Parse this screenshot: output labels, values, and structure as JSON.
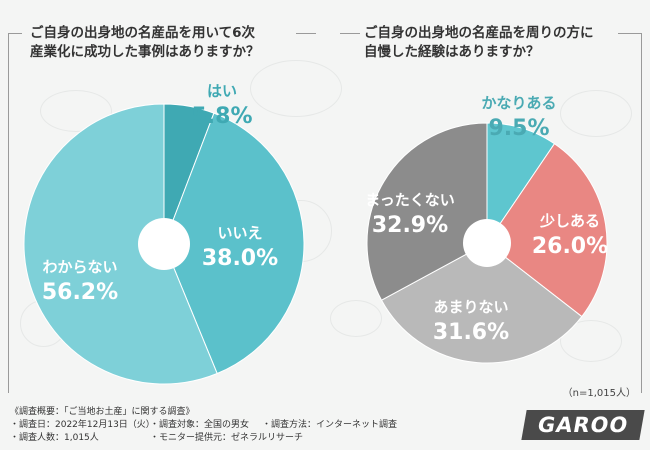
{
  "chart_data": [
    {
      "type": "pie",
      "title": "ご自身の出身地の名産品を用いて6次\n産業化に成功した事例はありますか？",
      "slices": [
        {
          "label": "はい",
          "value": 5.8,
          "display": "5.8%",
          "color": "#3fa9b3"
        },
        {
          "label": "いいえ",
          "value": 38.0,
          "display": "38.0%",
          "color": "#5bc1cb"
        },
        {
          "label": "わからない",
          "value": 56.2,
          "display": "56.2%",
          "color": "#7ed0d8"
        }
      ]
    },
    {
      "type": "pie",
      "title": "ご自身の出身地の名産品を周りの方に\n自慢した経験はありますか？",
      "slices": [
        {
          "label": "かなりある",
          "value": 9.5,
          "display": "9.5%",
          "color": "#5ec6cf"
        },
        {
          "label": "少しある",
          "value": 26.0,
          "display": "26.0%",
          "color": "#e98783"
        },
        {
          "label": "あまりない",
          "value": 31.6,
          "display": "31.6%",
          "color": "#b9b9b9"
        },
        {
          "label": "まったくない",
          "value": 32.9,
          "display": "32.9%",
          "color": "#8c8c8c"
        }
      ]
    }
  ],
  "note": "（n=1,015人）",
  "footer": {
    "heading": "《調査概要：「ご当地お土産」に関する調査》",
    "items": [
      "・調査日：2022年12月13日（火）",
      "・調査対象：全国の男女",
      "・調査方法：インターネット調査",
      "・調査人数：1,015人",
      "・モニター提供元：ゼネラルリサーチ"
    ]
  },
  "logo": "GAROO"
}
